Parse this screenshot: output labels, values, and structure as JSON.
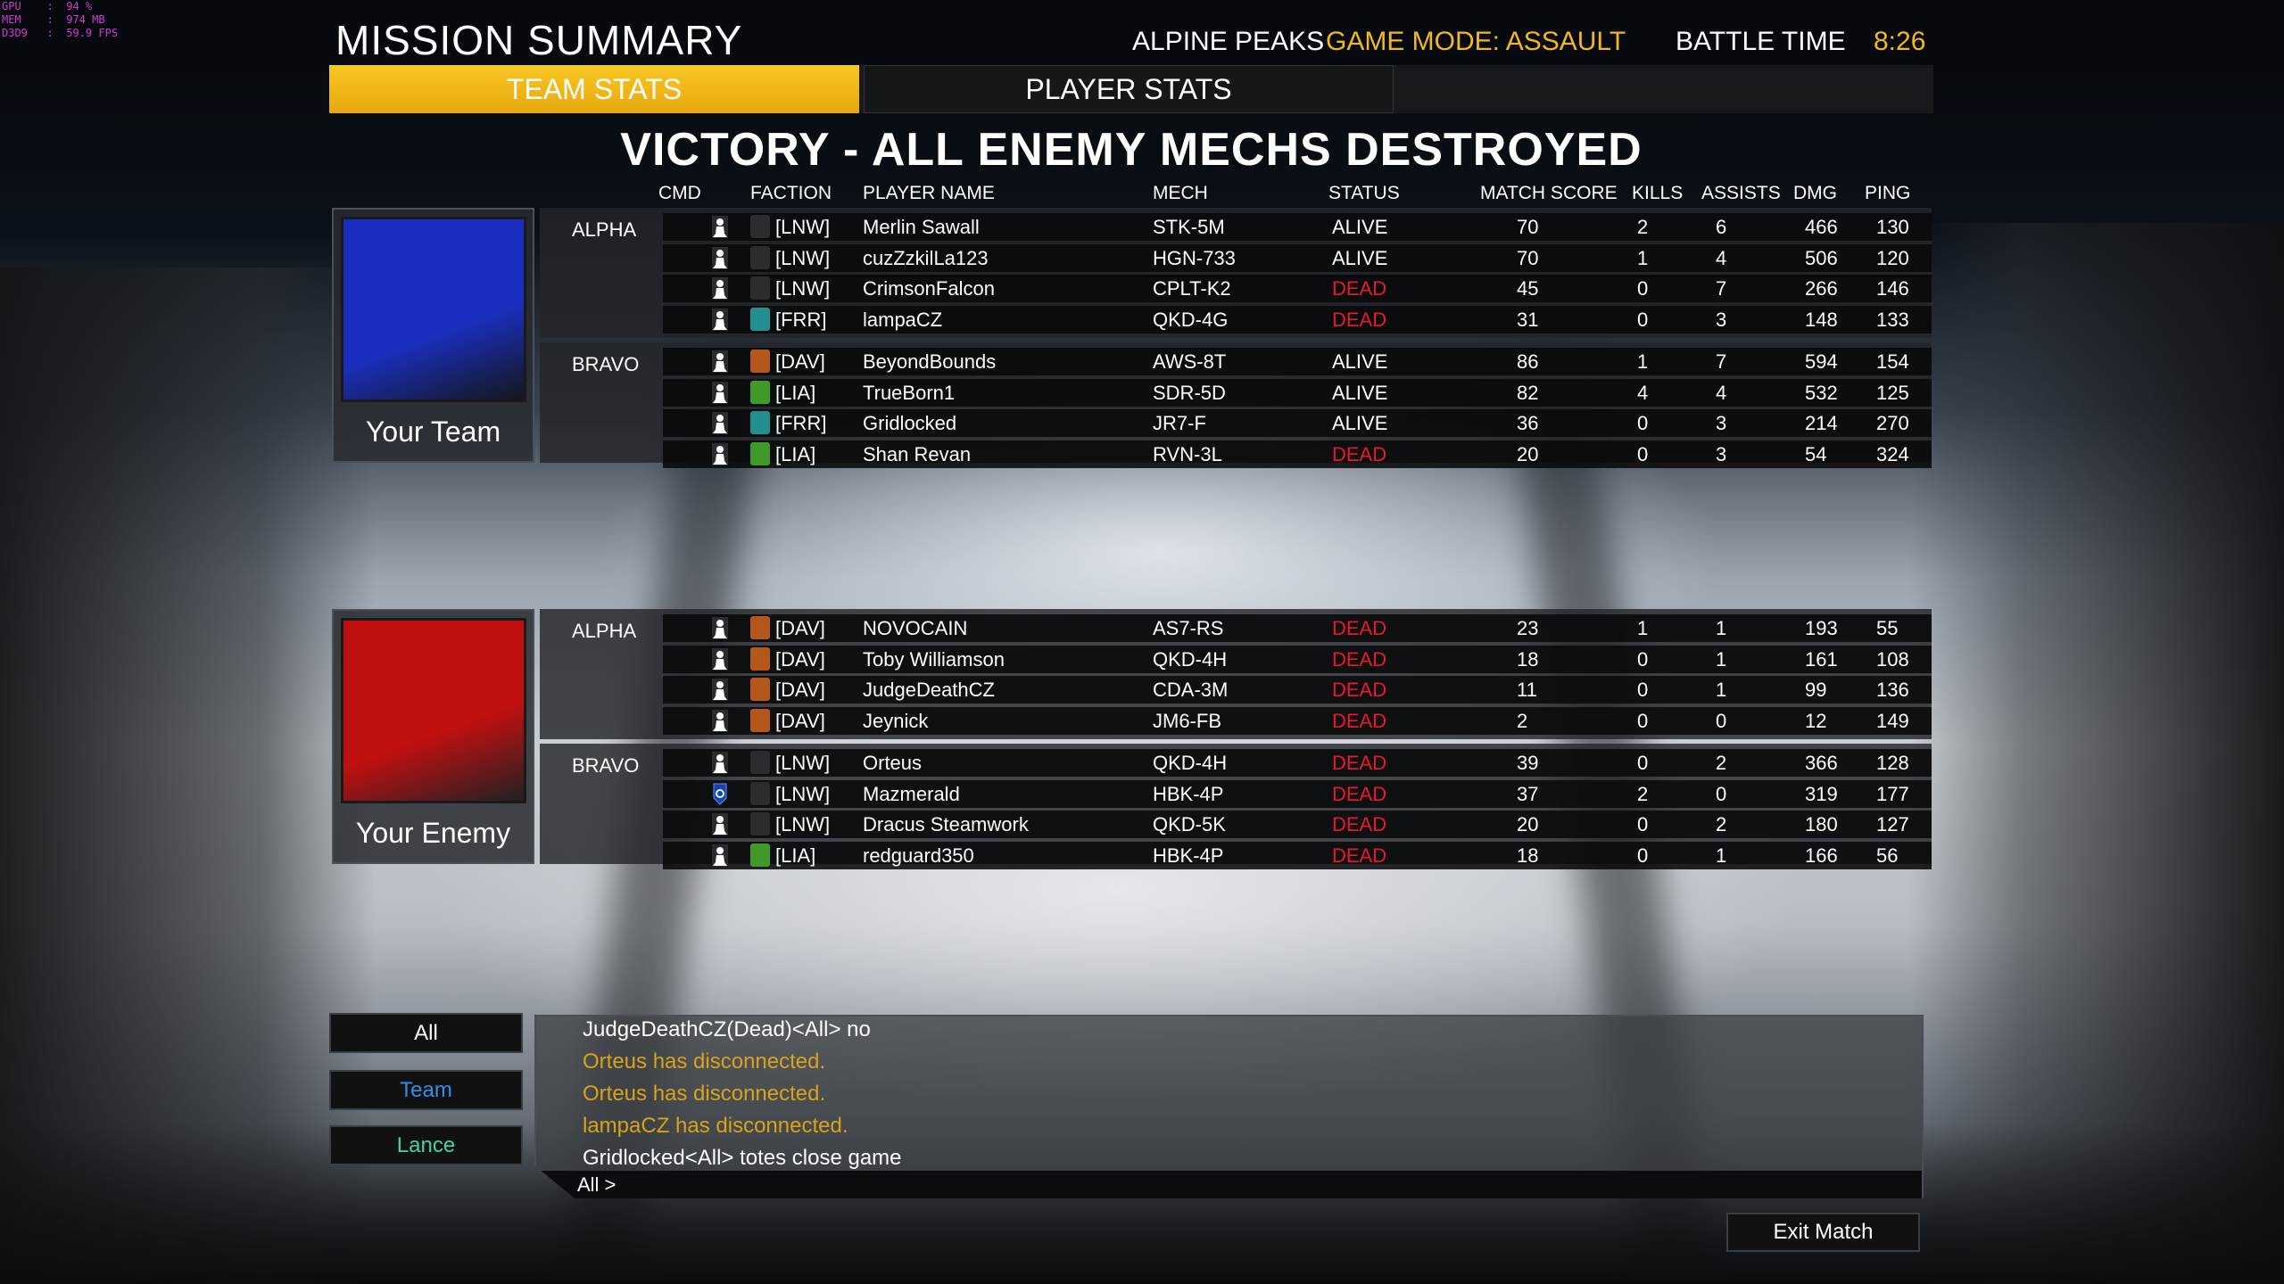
{
  "debug": [
    "GPU    :  94 %",
    "MEM    :  974 MB",
    "D3D9   :  59.9 FPS"
  ],
  "header": {
    "title": "MISSION SUMMARY",
    "map": "ALPINE PEAKS",
    "mode": "GAME MODE: ASSAULT",
    "battle_time_label": "BATTLE TIME",
    "battle_time": "8:26"
  },
  "tabs": [
    {
      "label": "TEAM STATS",
      "active": true
    },
    {
      "label": "PLAYER STATS",
      "active": false
    }
  ],
  "result": "VICTORY - ALL ENEMY MECHS DESTROYED",
  "columns": [
    "CMD",
    "FACTION",
    "PLAYER NAME",
    "MECH",
    "STATUS",
    "MATCH SCORE",
    "KILLS",
    "ASSISTS",
    "DMG",
    "PING"
  ],
  "colors": {
    "accent": "#f2b81c",
    "dead": "#e8192c",
    "team": "#1a2fc0",
    "enemy": "#c01010",
    "chat_system": "#d9a21a",
    "chat_team": "#2f8fe6",
    "chat_lance": "#3fd6a0"
  },
  "teams": [
    {
      "name": "Your Team",
      "color": "#1a2fc0",
      "groups": [
        {
          "label": "ALPHA",
          "rows": [
            {
              "cmd": "player",
              "faction": "[LNW]",
              "name": "Merlin Sawall",
              "mech": "STK-5M",
              "status": "ALIVE",
              "score": "70",
              "kills": "2",
              "assists": "6",
              "dmg": "466",
              "ping": "130"
            },
            {
              "cmd": "player",
              "faction": "[LNW]",
              "name": "cuzZzkilLa123",
              "mech": "HGN-733",
              "status": "ALIVE",
              "score": "70",
              "kills": "1",
              "assists": "4",
              "dmg": "506",
              "ping": "120"
            },
            {
              "cmd": "player",
              "faction": "[LNW]",
              "name": "CrimsonFalcon",
              "mech": "CPLT-K2",
              "status": "DEAD",
              "score": "45",
              "kills": "0",
              "assists": "7",
              "dmg": "266",
              "ping": "146"
            },
            {
              "cmd": "player",
              "faction": "[FRR]",
              "name": "lampaCZ",
              "mech": "QKD-4G",
              "status": "DEAD",
              "score": "31",
              "kills": "0",
              "assists": "3",
              "dmg": "148",
              "ping": "133"
            }
          ]
        },
        {
          "label": "BRAVO",
          "rows": [
            {
              "cmd": "player",
              "faction": "[DAV]",
              "name": "BeyondBounds",
              "mech": "AWS-8T",
              "status": "ALIVE",
              "score": "86",
              "kills": "1",
              "assists": "7",
              "dmg": "594",
              "ping": "154"
            },
            {
              "cmd": "player",
              "faction": "[LIA]",
              "name": "TrueBorn1",
              "mech": "SDR-5D",
              "status": "ALIVE",
              "score": "82",
              "kills": "4",
              "assists": "4",
              "dmg": "532",
              "ping": "125"
            },
            {
              "cmd": "player",
              "faction": "[FRR]",
              "name": "Gridlocked",
              "mech": "JR7-F",
              "status": "ALIVE",
              "score": "36",
              "kills": "0",
              "assists": "3",
              "dmg": "214",
              "ping": "270"
            },
            {
              "cmd": "player",
              "faction": "[LIA]",
              "name": "Shan Revan",
              "mech": "RVN-3L",
              "status": "DEAD",
              "score": "20",
              "kills": "0",
              "assists": "3",
              "dmg": "54",
              "ping": "324"
            }
          ]
        }
      ]
    },
    {
      "name": "Your Enemy",
      "color": "#c01010",
      "groups": [
        {
          "label": "ALPHA",
          "rows": [
            {
              "cmd": "player",
              "faction": "[DAV]",
              "name": "NOVOCAIN",
              "mech": "AS7-RS",
              "status": "DEAD",
              "score": "23",
              "kills": "1",
              "assists": "1",
              "dmg": "193",
              "ping": "55"
            },
            {
              "cmd": "player",
              "faction": "[DAV]",
              "name": "Toby Williamson",
              "mech": "QKD-4H",
              "status": "DEAD",
              "score": "18",
              "kills": "0",
              "assists": "1",
              "dmg": "161",
              "ping": "108"
            },
            {
              "cmd": "player",
              "faction": "[DAV]",
              "name": "JudgeDeathCZ",
              "mech": "CDA-3M",
              "status": "DEAD",
              "score": "11",
              "kills": "0",
              "assists": "1",
              "dmg": "99",
              "ping": "136"
            },
            {
              "cmd": "player",
              "faction": "[DAV]",
              "name": "Jeynick",
              "mech": "JM6-FB",
              "status": "DEAD",
              "score": "2",
              "kills": "0",
              "assists": "0",
              "dmg": "12",
              "ping": "149"
            }
          ]
        },
        {
          "label": "BRAVO",
          "rows": [
            {
              "cmd": "player",
              "faction": "[LNW]",
              "name": "Orteus",
              "mech": "QKD-4H",
              "status": "DEAD",
              "score": "39",
              "kills": "0",
              "assists": "2",
              "dmg": "366",
              "ping": "128"
            },
            {
              "cmd": "commander",
              "faction": "[LNW]",
              "name": "Mazmerald",
              "mech": "HBK-4P",
              "status": "DEAD",
              "score": "37",
              "kills": "2",
              "assists": "0",
              "dmg": "319",
              "ping": "177"
            },
            {
              "cmd": "player",
              "faction": "[LNW]",
              "name": "Dracus Steamwork",
              "mech": "QKD-5K",
              "status": "DEAD",
              "score": "20",
              "kills": "0",
              "assists": "2",
              "dmg": "180",
              "ping": "127"
            },
            {
              "cmd": "player",
              "faction": "[LIA]",
              "name": "redguard350",
              "mech": "HBK-4P",
              "status": "DEAD",
              "score": "18",
              "kills": "0",
              "assists": "1",
              "dmg": "166",
              "ping": "56"
            }
          ]
        }
      ]
    }
  ],
  "chat": {
    "channels": [
      {
        "label": "All",
        "color": "#ffffff"
      },
      {
        "label": "Team",
        "color": "#2f8fe6"
      },
      {
        "label": "Lance",
        "color": "#3fd6a0"
      }
    ],
    "lines": [
      {
        "text": "JudgeDeathCZ(Dead)<All> no",
        "type": "message"
      },
      {
        "text": "Orteus has disconnected.",
        "type": "system"
      },
      {
        "text": "Orteus has disconnected.",
        "type": "system"
      },
      {
        "text": "lampaCZ has disconnected.",
        "type": "system"
      },
      {
        "text": "Gridlocked<All> totes close game",
        "type": "message"
      }
    ],
    "input_prefix": "All >"
  },
  "exit_label": "Exit Match"
}
